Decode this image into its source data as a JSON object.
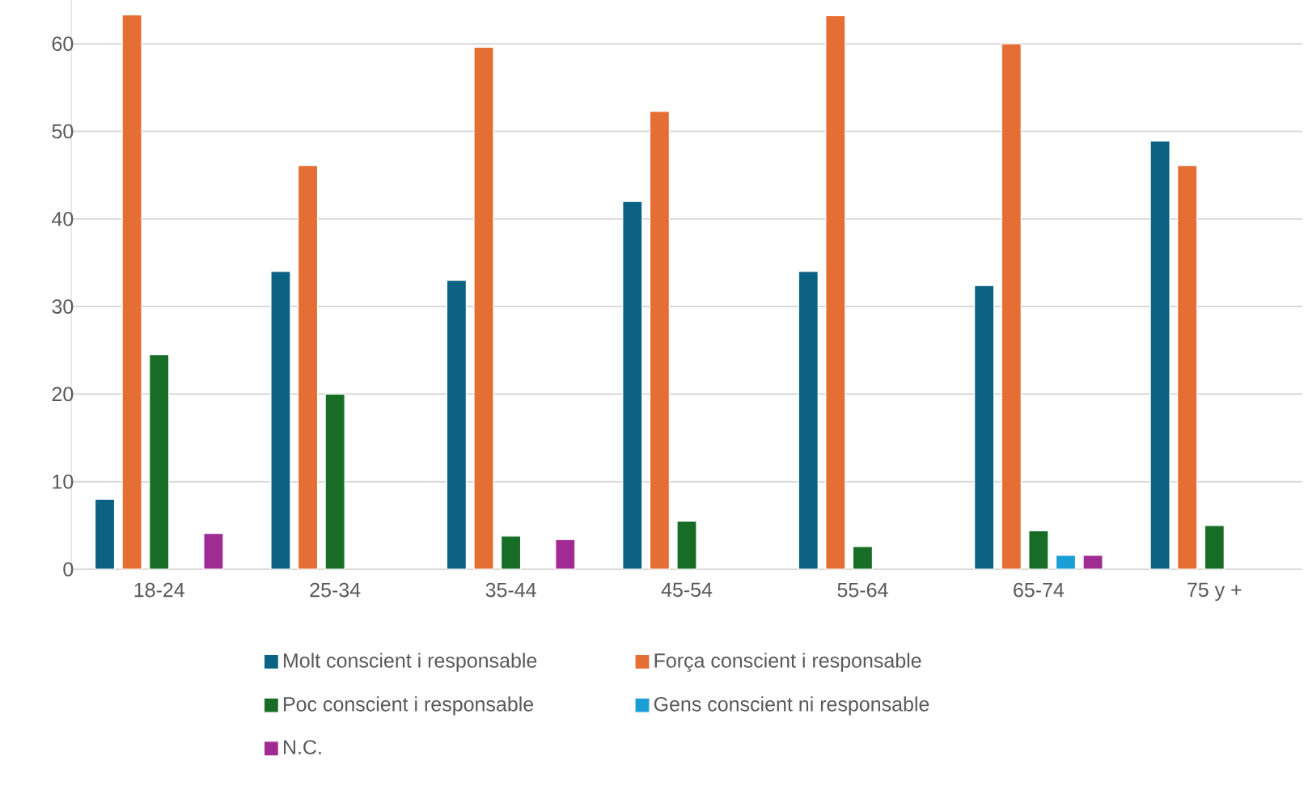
{
  "chart_data": {
    "type": "bar",
    "categories": [
      "18-24",
      "25-34",
      "35-44",
      "45-54",
      "55-64",
      "65-74",
      "75 y +"
    ],
    "series": [
      {
        "name": "Molt conscient i responsable",
        "color": "#0b6283",
        "values": [
          8,
          34,
          33,
          42,
          34,
          32.4,
          48.9
        ]
      },
      {
        "name": "Força conscient i responsable",
        "color": "#e56e34",
        "values": [
          63.3,
          46.1,
          59.6,
          52.3,
          63.2,
          60,
          46.1
        ]
      },
      {
        "name": "Poc conscient i responsable",
        "color": "#176d26",
        "values": [
          24.5,
          20,
          3.8,
          5.5,
          2.6,
          4.4,
          5
        ]
      },
      {
        "name": "Gens conscient ni responsable",
        "color": "#1a9ed6",
        "values": [
          null,
          null,
          null,
          null,
          null,
          1.6,
          null
        ]
      },
      {
        "name": "N.C.",
        "color": "#a02c93",
        "values": [
          4.1,
          null,
          3.4,
          null,
          null,
          1.6,
          null
        ]
      }
    ],
    "yticks": [
      0,
      10,
      20,
      30,
      40,
      50,
      60
    ],
    "ylim": [
      0,
      65
    ],
    "grid": "y",
    "legend": "bottom"
  }
}
